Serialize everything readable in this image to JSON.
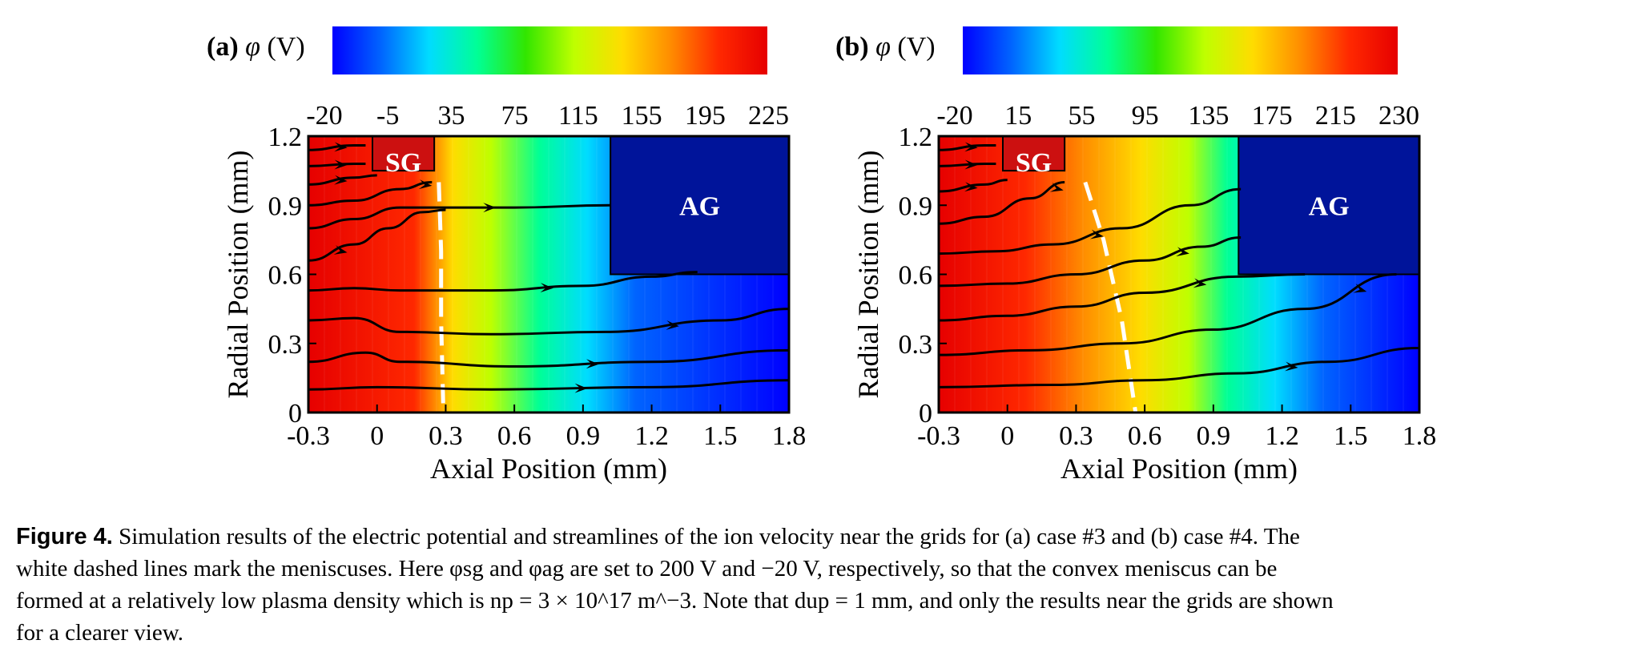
{
  "panels": [
    {
      "id": "a",
      "legend_prefix": "(a)",
      "legend_symbol": "φ",
      "legend_unit": "(V)",
      "colorbar_ticks": [
        "-20",
        "-5",
        "35",
        "75",
        "115",
        "155",
        "195",
        "225"
      ],
      "sg_label": "SG",
      "ag_label": "AG",
      "xlabel": "Axial Position (mm)",
      "ylabel": "Radial Position (mm)",
      "x_ticks": [
        "-0.3",
        "0",
        "0.3",
        "0.6",
        "0.9",
        "1.2",
        "1.5",
        "1.8"
      ],
      "y_ticks": [
        "0",
        "0.3",
        "0.6",
        "0.9",
        "1.2"
      ]
    },
    {
      "id": "b",
      "legend_prefix": "(b)",
      "legend_symbol": "φ",
      "legend_unit": "(V)",
      "colorbar_ticks": [
        "-20",
        "15",
        "55",
        "95",
        "135",
        "175",
        "215",
        "230"
      ],
      "sg_label": "SG",
      "ag_label": "AG",
      "xlabel": "Axial Position (mm)",
      "ylabel": "Radial Position (mm)",
      "x_ticks": [
        "-0.3",
        "0",
        "0.3",
        "0.6",
        "0.9",
        "1.2",
        "1.5",
        "1.8"
      ],
      "y_ticks": [
        "0",
        "0.3",
        "0.6",
        "0.9",
        "1.2"
      ]
    }
  ],
  "colors": {
    "colormap": [
      "#0000ff",
      "#0064ff",
      "#00dcff",
      "#00ff96",
      "#32e600",
      "#beff00",
      "#ffdc00",
      "#ff8c00",
      "#ff2800",
      "#e60000"
    ],
    "sg_fill": "#cc1010",
    "ag_fill": "#00149a",
    "meniscus": "#ffffff",
    "streamline": "#000000"
  },
  "caption": {
    "label": "Figure 4.",
    "line1": "Simulation results of the electric potential and streamlines of the ion velocity near the grids for (a) case #3 and (b) case #4. The",
    "line2": "white dashed lines mark the meniscuses. Here φsg and φag are set to 200 V and −20 V, respectively, so that the convex meniscus can be",
    "line3": "formed at a relatively low plasma density which is np = 3 × 10^17 m^−3. Note that dup = 1 mm, and only the results near the grids are shown",
    "line4": "for a clearer view."
  }
}
